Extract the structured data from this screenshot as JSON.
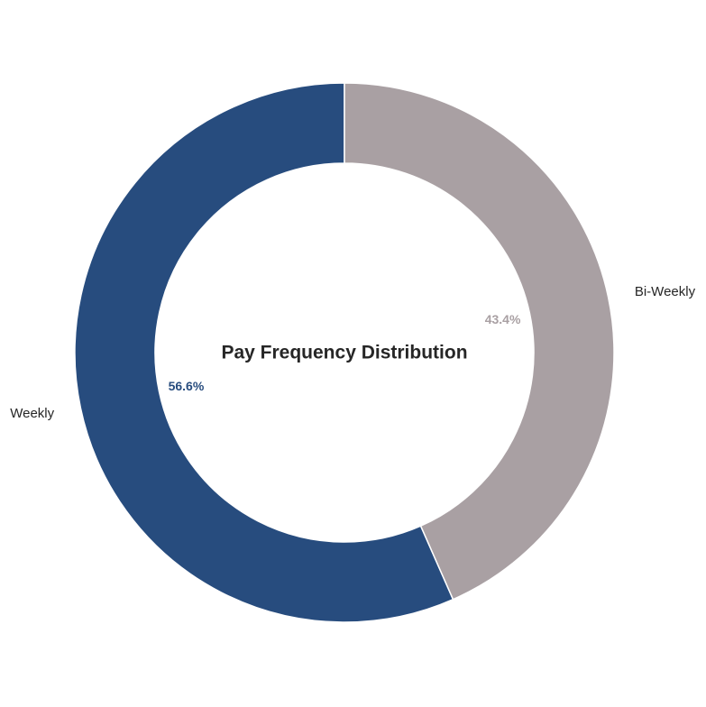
{
  "chart_data": {
    "type": "pie",
    "style": "donut",
    "title": "Pay Frequency Distribution",
    "categories": [
      "Weekly",
      "Bi-Weekly"
    ],
    "values": [
      56.6,
      43.4
    ],
    "percent_labels": [
      "56.6%",
      "43.4%"
    ],
    "colors": [
      "#274c7e",
      "#a9a0a3"
    ],
    "start_angle_deg": 90,
    "direction": "counterclockwise",
    "legend": "none"
  }
}
